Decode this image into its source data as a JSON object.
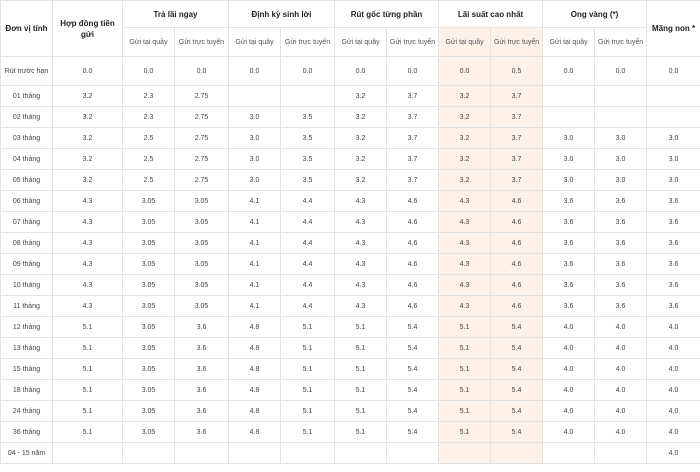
{
  "colors": {
    "highlight": "#fdf1e8",
    "border": "#e3e3e3",
    "text": "#444444"
  },
  "header": {
    "unit_col": "Đơn vị tính",
    "contract_col": "Hợp đồng tiền gửi",
    "groups": [
      "Trả lãi ngay",
      "Định kỳ sinh lời",
      "Rút gốc từng phần",
      "Lãi suất cao nhất",
      "Ong vàng (*)"
    ],
    "mang_non": "Măng non *",
    "sub_counter": "Gửi tại quầy",
    "sub_online": "Gửi trực tuyến"
  },
  "rows": [
    {
      "term": "Rút trước hạn",
      "v": [
        "0.0",
        "0.0",
        "0.0",
        "0.0",
        "0.0",
        "0.0",
        "0.0",
        "0.0",
        "0.5",
        "0.0",
        "0.0",
        "0.0"
      ]
    },
    {
      "term": "01 tháng",
      "v": [
        "3.2",
        "2.3",
        "2.75",
        "",
        "",
        "3.2",
        "3.7",
        "3.2",
        "3.7",
        "",
        "",
        ""
      ]
    },
    {
      "term": "02 tháng",
      "v": [
        "3.2",
        "2.3",
        "2.75",
        "3.0",
        "3.5",
        "3.2",
        "3.7",
        "3.2",
        "3.7",
        "",
        "",
        ""
      ]
    },
    {
      "term": "03 tháng",
      "v": [
        "3.2",
        "2.5",
        "2.75",
        "3.0",
        "3.5",
        "3.2",
        "3.7",
        "3.2",
        "3.7",
        "3.0",
        "3.0",
        "3.0"
      ]
    },
    {
      "term": "04 tháng",
      "v": [
        "3.2",
        "2.5",
        "2.75",
        "3.0",
        "3.5",
        "3.2",
        "3.7",
        "3.2",
        "3.7",
        "3.0",
        "3.0",
        "3.0"
      ]
    },
    {
      "term": "05 tháng",
      "v": [
        "3.2",
        "2.5",
        "2.75",
        "3.0",
        "3.5",
        "3.2",
        "3.7",
        "3.2",
        "3.7",
        "3.0",
        "3.0",
        "3.0"
      ]
    },
    {
      "term": "06 tháng",
      "v": [
        "4.3",
        "3.05",
        "3.05",
        "4.1",
        "4.4",
        "4.3",
        "4.6",
        "4.3",
        "4.6",
        "3.6",
        "3.6",
        "3.6"
      ]
    },
    {
      "term": "07 tháng",
      "v": [
        "4.3",
        "3.05",
        "3.05",
        "4.1",
        "4.4",
        "4.3",
        "4.6",
        "4.3",
        "4.6",
        "3.6",
        "3.6",
        "3.6"
      ]
    },
    {
      "term": "08 tháng",
      "v": [
        "4.3",
        "3.05",
        "3.05",
        "4.1",
        "4.4",
        "4.3",
        "4.6",
        "4.3",
        "4.6",
        "3.6",
        "3.6",
        "3.6"
      ]
    },
    {
      "term": "09 tháng",
      "v": [
        "4.3",
        "3.05",
        "3.05",
        "4.1",
        "4.4",
        "4.3",
        "4.6",
        "4.3",
        "4.6",
        "3.6",
        "3.6",
        "3.6"
      ]
    },
    {
      "term": "10 tháng",
      "v": [
        "4.3",
        "3.05",
        "3.05",
        "4.1",
        "4.4",
        "4.3",
        "4.6",
        "4.3",
        "4.6",
        "3.6",
        "3.6",
        "3.6"
      ]
    },
    {
      "term": "11 tháng",
      "v": [
        "4.3",
        "3.05",
        "3.05",
        "4.1",
        "4.4",
        "4.3",
        "4.6",
        "4.3",
        "4.6",
        "3.6",
        "3.6",
        "3.6"
      ]
    },
    {
      "term": "12 tháng",
      "v": [
        "5.1",
        "3.05",
        "3.6",
        "4.8",
        "5.1",
        "5.1",
        "5.4",
        "5.1",
        "5.4",
        "4.0",
        "4.0",
        "4.0"
      ]
    },
    {
      "term": "13 tháng",
      "v": [
        "5.1",
        "3.05",
        "3.6",
        "4.8",
        "5.1",
        "5.1",
        "5.4",
        "5.1",
        "5.4",
        "4.0",
        "4.0",
        "4.0"
      ]
    },
    {
      "term": "15 tháng",
      "v": [
        "5.1",
        "3.05",
        "3.6",
        "4.8",
        "5.1",
        "5.1",
        "5.4",
        "5.1",
        "5.4",
        "4.0",
        "4.0",
        "4.0"
      ]
    },
    {
      "term": "18 tháng",
      "v": [
        "5.1",
        "3.05",
        "3.6",
        "4.8",
        "5.1",
        "5.1",
        "5.4",
        "5.1",
        "5.4",
        "4.0",
        "4.0",
        "4.0"
      ]
    },
    {
      "term": "24 tháng",
      "v": [
        "5.1",
        "3.05",
        "3.6",
        "4.8",
        "5.1",
        "5.1",
        "5.4",
        "5.1",
        "5.4",
        "4.0",
        "4.0",
        "4.0"
      ]
    },
    {
      "term": "36 tháng",
      "v": [
        "5.1",
        "3.05",
        "3.6",
        "4.8",
        "5.1",
        "5.1",
        "5.4",
        "5.1",
        "5.4",
        "4.0",
        "4.0",
        "4.0"
      ]
    },
    {
      "term": "04 - 15 năm",
      "v": [
        "",
        "",
        "",
        "",
        "",
        "",
        "",
        "",
        "",
        "",
        "",
        "4.0"
      ]
    }
  ]
}
